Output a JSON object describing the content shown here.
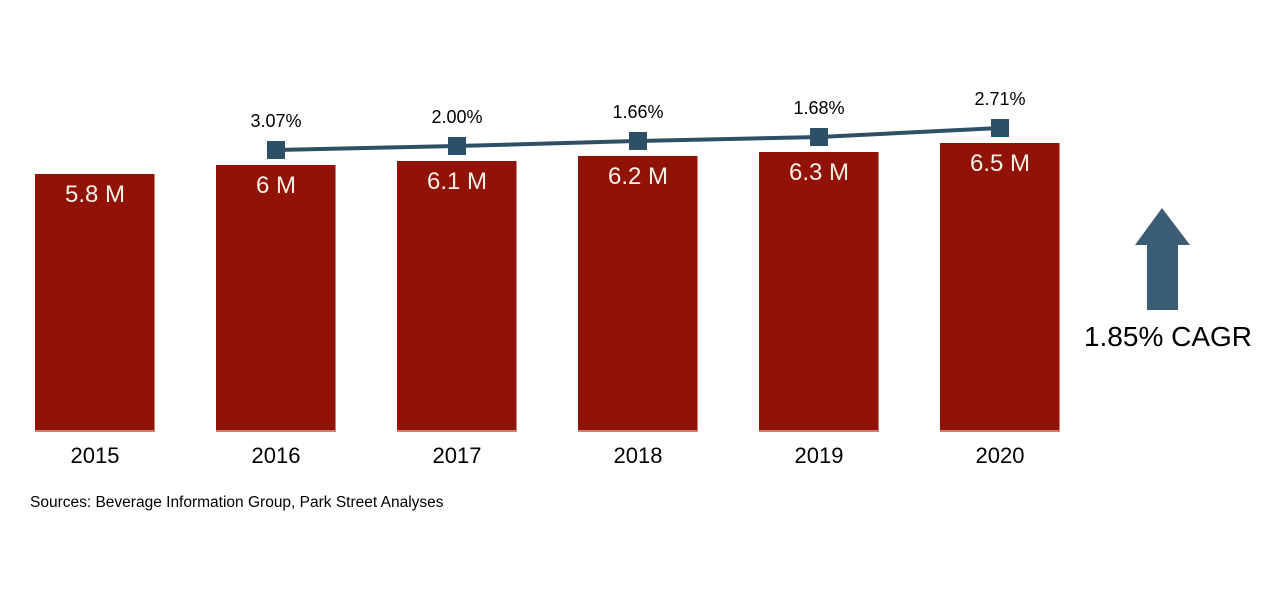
{
  "chart_data": {
    "type": "bar",
    "title": "",
    "categories": [
      "2015",
      "2016",
      "2017",
      "2018",
      "2019",
      "2020"
    ],
    "bar_values_millions": [
      5.8,
      6.0,
      6.1,
      6.2,
      6.3,
      6.5
    ],
    "bar_labels": [
      "5.8 M",
      "6 M",
      "6.1 M",
      "6.2 M",
      "6.3 M",
      "6.5 M"
    ],
    "growth_line": {
      "categories": [
        "2016",
        "2017",
        "2018",
        "2019",
        "2020"
      ],
      "values_percent": [
        3.07,
        2.0,
        1.66,
        1.68,
        2.71
      ],
      "labels": [
        "3.07%",
        "2.00%",
        "1.66%",
        "1.68%",
        "2.71%"
      ],
      "marker": "square"
    },
    "ylim": [
      0,
      6.5
    ],
    "grid": false,
    "legend": false
  },
  "annotation": {
    "cagr_label": "1.85% CAGR"
  },
  "source_note": "Sources: Beverage Information Group, Park Street Analyses",
  "colors": {
    "bar": "#911207",
    "bar_label": "#F5F0E6",
    "line": "#2E5066",
    "marker": "#2E5066",
    "arrow": "#3A5C74",
    "text": "#000000",
    "background": "#FFFFFF"
  }
}
